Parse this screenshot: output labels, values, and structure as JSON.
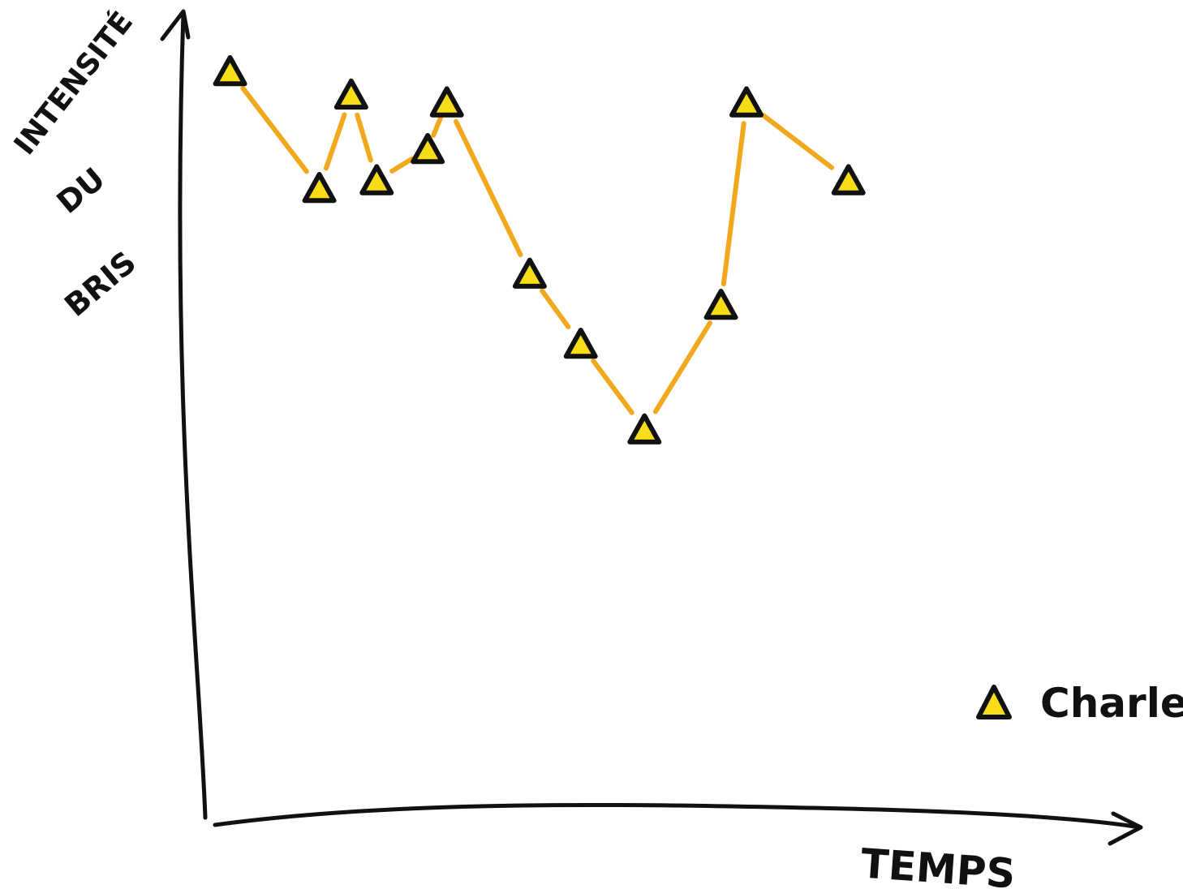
{
  "chart_data": {
    "type": "line",
    "xlabel": "TEMPS",
    "ylabel_lines": [
      "INTENSITÉ",
      "DU",
      "BRIS"
    ],
    "xlim": [
      0,
      14
    ],
    "ylim": [
      0,
      10
    ],
    "grid": false,
    "legend_position": "bottom-right",
    "colors": {
      "line": "#F2A81D",
      "marker_fill": "#F7DD17",
      "marker_outline": "#111111",
      "axis": "#111111"
    },
    "series": [
      {
        "name": "Charles",
        "marker": "triangle",
        "x": [
          0.3,
          1.7,
          2.2,
          2.6,
          3.4,
          3.7,
          5.0,
          5.8,
          6.8,
          8.0,
          8.4,
          10.0
        ],
        "y": [
          9.5,
          8.0,
          9.2,
          8.1,
          8.5,
          9.1,
          6.9,
          6.0,
          4.9,
          6.5,
          9.1,
          8.1
        ]
      }
    ]
  }
}
